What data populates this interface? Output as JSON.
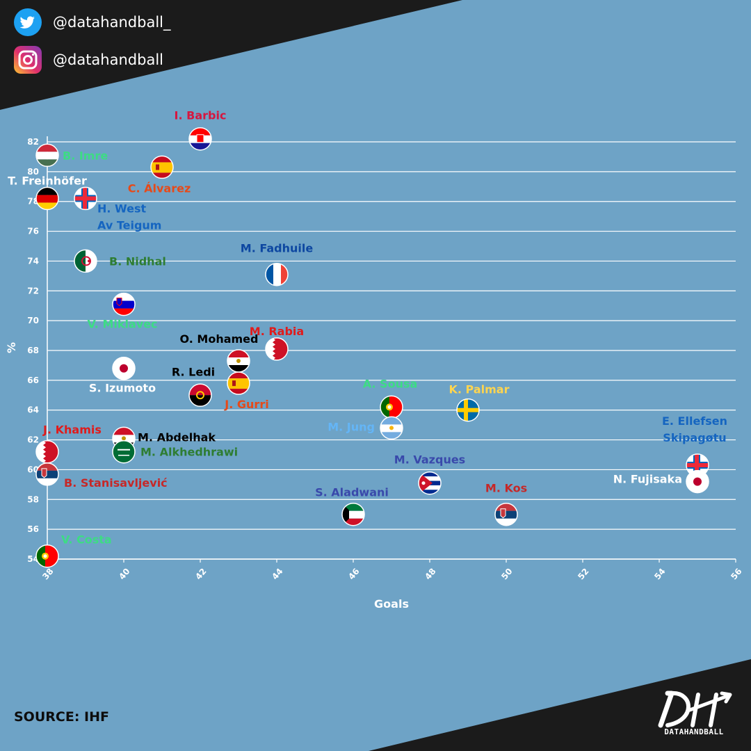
{
  "social": {
    "twitter": {
      "icon": "twitter-bird-icon",
      "handle": "@datahandball_"
    },
    "instagram": {
      "icon": "instagram-icon",
      "handle": "@datahandball"
    }
  },
  "source": "SOURCE: IHF",
  "brand": {
    "logo_icon": "datahandball-dh-logo",
    "name": "DATAHANDBALL"
  },
  "colors": {
    "background": "#6ea3c6",
    "corner": "#1b1b1b",
    "grid": "#ffffff"
  },
  "chart_data": {
    "type": "scatter",
    "xlabel": "Goals",
    "ylabel": "%",
    "xlim": [
      38,
      56
    ],
    "ylim": [
      54,
      82
    ],
    "xticks": [
      38,
      40,
      42,
      44,
      46,
      48,
      50,
      52,
      54,
      56
    ],
    "yticks": [
      54,
      56,
      58,
      60,
      62,
      64,
      66,
      68,
      70,
      72,
      74,
      76,
      78,
      80,
      82
    ],
    "grid": "horizontal",
    "points": [
      {
        "label": "I. Barbic",
        "x": 42,
        "y": 82.2,
        "flag": "croatia",
        "color": "#d6163f"
      },
      {
        "label": "B. Imre",
        "x": 38,
        "y": 81.1,
        "flag": "hungary",
        "color": "#3ddc84"
      },
      {
        "label": "C. Álvarez",
        "x": 41,
        "y": 80.3,
        "flag": "spain",
        "color": "#e64a19"
      },
      {
        "label": "T. Freinhöfer",
        "x": 38,
        "y": 78.2,
        "flag": "germany",
        "color": "#ffffff"
      },
      {
        "label": "H. West\nAv Teigum",
        "x": 39,
        "y": 78.2,
        "flag": "faroe",
        "color": "#1565c0"
      },
      {
        "label": "B. Nidhal",
        "x": 39,
        "y": 74.0,
        "flag": "algeria",
        "color": "#2e7d32"
      },
      {
        "label": "M. Fadhuile",
        "x": 44,
        "y": 73.1,
        "flag": "france",
        "color": "#0d47a1"
      },
      {
        "label": "V. Miklavec",
        "x": 40,
        "y": 71.1,
        "flag": "slovenia",
        "color": "#3ddc84"
      },
      {
        "label": "M. Rabia",
        "x": 44,
        "y": 68.1,
        "flag": "bahrain",
        "color": "#e01b1b"
      },
      {
        "label": "O. Mohamed",
        "x": 43,
        "y": 67.3,
        "flag": "egypt",
        "color": "#000000"
      },
      {
        "label": "S. Izumoto",
        "x": 40,
        "y": 66.8,
        "flag": "japan",
        "color": "#ffffff"
      },
      {
        "label": "J. Gurri",
        "x": 43,
        "y": 65.8,
        "flag": "spain",
        "color": "#e64a19"
      },
      {
        "label": "R. Ledi",
        "x": 42,
        "y": 65.0,
        "flag": "angola",
        "color": "#000000"
      },
      {
        "label": "A. Sousa",
        "x": 47,
        "y": 64.2,
        "flag": "portugal",
        "color": "#3ddc84"
      },
      {
        "label": "K. Palmar",
        "x": 49,
        "y": 64.0,
        "flag": "sweden",
        "color": "#ffd54f"
      },
      {
        "label": "M. Jung",
        "x": 47,
        "y": 62.8,
        "flag": "argentina",
        "color": "#64b5f6"
      },
      {
        "label": "M. Abdelhak",
        "x": 40,
        "y": 62.1,
        "flag": "egypt",
        "color": "#000000"
      },
      {
        "label": "M. Alkhedhrawi",
        "x": 40,
        "y": 61.2,
        "flag": "saudi",
        "color": "#2e7d32"
      },
      {
        "label": "J. Khamis",
        "x": 38,
        "y": 61.2,
        "flag": "bahrain",
        "color": "#e01b1b"
      },
      {
        "label": "E. Ellefsen\nSkipagøtu",
        "x": 55,
        "y": 60.3,
        "flag": "faroe",
        "color": "#1565c0"
      },
      {
        "label": "B. Stanisavljević",
        "x": 38,
        "y": 59.7,
        "flag": "serbia",
        "color": "#c62828"
      },
      {
        "label": "M. Vazques",
        "x": 48,
        "y": 59.1,
        "flag": "cuba",
        "color": "#3949ab"
      },
      {
        "label": "N. Fujisaka",
        "x": 55,
        "y": 59.2,
        "flag": "japan",
        "color": "#ffffff"
      },
      {
        "label": "S. Aladwani",
        "x": 46,
        "y": 57.0,
        "flag": "kuwait",
        "color": "#3949ab"
      },
      {
        "label": "M. Kos",
        "x": 50,
        "y": 57.0,
        "flag": "serbia",
        "color": "#c62828"
      },
      {
        "label": "V. Costa",
        "x": 38,
        "y": 54.2,
        "flag": "portugal",
        "color": "#3ddc84"
      }
    ]
  }
}
